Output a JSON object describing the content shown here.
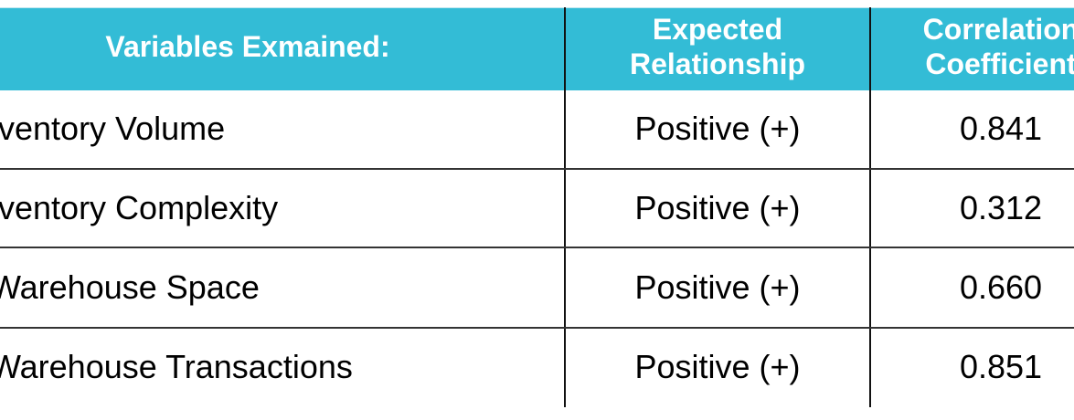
{
  "table": {
    "header_color": "#33bcd6",
    "headers": [
      "Variables Exmained:",
      "Expected",
      "Relationship",
      "Correlation",
      "Coefficient"
    ],
    "rows": [
      {
        "variable": "ventory Volume",
        "relationship": "Positive (+)",
        "coefficient": "0.841"
      },
      {
        "variable": "ventory Complexity",
        "relationship": "Positive (+)",
        "coefficient": "0.312"
      },
      {
        "variable": "Warehouse Space",
        "relationship": "Positive (+)",
        "coefficient": "0.660"
      },
      {
        "variable": "Warehouse Transactions",
        "relationship": "Positive (+)",
        "coefficient": "0.851"
      }
    ]
  }
}
